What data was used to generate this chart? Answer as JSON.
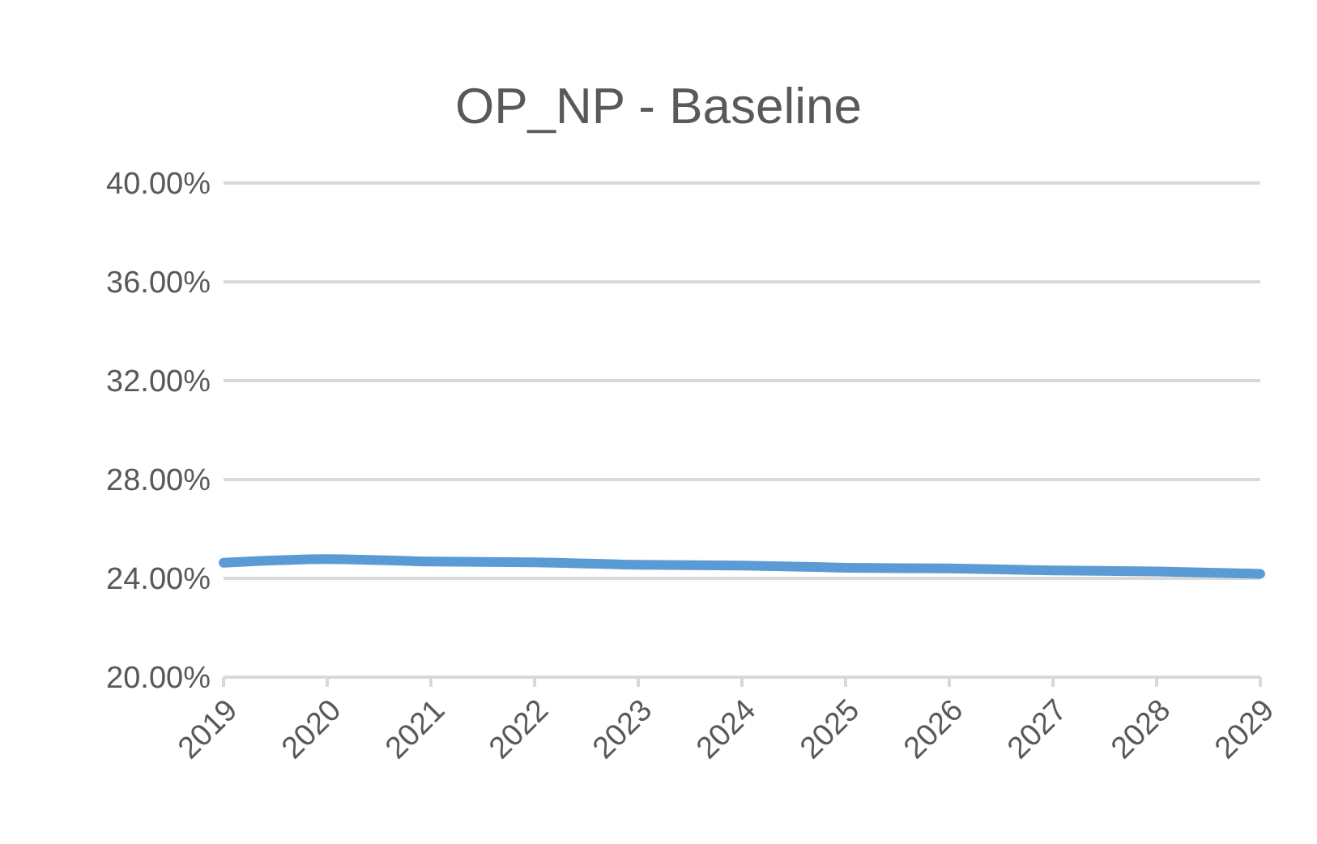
{
  "chart_data": {
    "type": "line",
    "title": "OP_NP - Baseline",
    "categories": [
      "2019",
      "2020",
      "2021",
      "2022",
      "2023",
      "2024",
      "2025",
      "2026",
      "2027",
      "2028",
      "2029"
    ],
    "series": [
      {
        "color": "#5b9bd5",
        "values": [
          0.2463,
          0.2478,
          0.2468,
          0.2465,
          0.2455,
          0.2452,
          0.2443,
          0.244,
          0.2432,
          0.2428,
          0.2418
        ]
      }
    ],
    "ylim": [
      0.2,
      0.4
    ],
    "yticks": [
      {
        "value": 0.2,
        "label": "20.00%"
      },
      {
        "value": 0.24,
        "label": "24.00%"
      },
      {
        "value": 0.28,
        "label": "28.00%"
      },
      {
        "value": 0.32,
        "label": "32.00%"
      },
      {
        "value": 0.36,
        "label": "36.00%"
      },
      {
        "value": 0.4,
        "label": "40.00%"
      }
    ],
    "grid": "y",
    "marker": "none",
    "line_style": "solid",
    "legend": false
  }
}
